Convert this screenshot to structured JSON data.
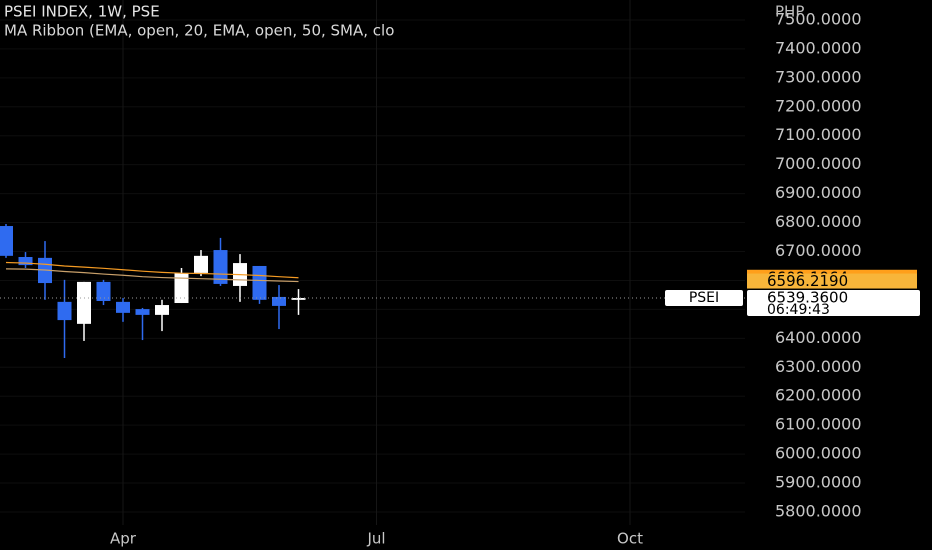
{
  "chart_data": {
    "type": "candlestick",
    "title": "PSEI INDEX, 1W, PSE",
    "subtitle": "MA Ribbon (EMA, open, 20, EMA, open, 50, SMA, clo",
    "y_unit": "PHP",
    "categories": [
      null,
      null,
      null,
      null,
      null,
      null,
      "Apr",
      null,
      null,
      null,
      null,
      null,
      null,
      null,
      null,
      null,
      null,
      null,
      null,
      "Jul",
      null,
      null,
      null,
      null,
      null,
      null,
      null,
      null,
      null,
      null,
      null,
      null,
      "Oct",
      null,
      null,
      null,
      null,
      null
    ],
    "open": [
      6788,
      6681,
      6678,
      6526,
      6450,
      6595,
      6526,
      6501,
      6481,
      6522,
      6626,
      6705,
      6581,
      6650,
      6543,
      6533,
      null,
      null,
      null,
      null,
      null,
      null,
      null,
      null,
      null,
      null,
      null,
      null,
      null,
      null,
      null,
      null,
      null,
      null,
      null,
      null,
      null,
      null
    ],
    "high": [
      6795,
      6698,
      6736,
      6602,
      6595,
      6602,
      6539,
      6505,
      6533,
      6643,
      6705,
      6747,
      6691,
      6650,
      6584,
      6570,
      null,
      null,
      null,
      null,
      null,
      null,
      null,
      null,
      null,
      null,
      null,
      null,
      null,
      null,
      null,
      null,
      null,
      null,
      null,
      null,
      null,
      null
    ],
    "low": [
      6678,
      6643,
      6533,
      6332,
      6391,
      6515,
      6457,
      6394,
      6425,
      6522,
      6615,
      6581,
      6526,
      6519,
      6432,
      6481,
      null,
      null,
      null,
      null,
      null,
      null,
      null,
      null,
      null,
      null,
      null,
      null,
      null,
      null,
      null,
      null,
      null,
      null,
      null,
      null,
      null,
      null
    ],
    "close": [
      6685,
      6653,
      6591,
      6463,
      6595,
      6529,
      6488,
      6481,
      6515,
      6626,
      6685,
      6588,
      6660,
      6533,
      6512,
      6539.36,
      null,
      null,
      null,
      null,
      null,
      null,
      null,
      null,
      null,
      null,
      null,
      null,
      null,
      null,
      null,
      null,
      null,
      null,
      null,
      null,
      null,
      null
    ],
    "up_color": "#ffffff",
    "down_color": "#2f6bf0",
    "ma_lines": [
      {
        "color": "#f59b23",
        "label_color": "#ff9f1a",
        "values": [
          6662,
          6660,
          6656,
          6650,
          6646,
          6642,
          6637,
          6632,
          6628,
          6625,
          6624,
          6622,
          6620,
          6617,
          6613,
          6609.1964,
          null,
          null,
          null,
          null,
          null,
          null,
          null,
          null,
          null,
          null,
          null,
          null,
          null,
          null,
          null,
          null,
          null,
          null,
          null,
          null,
          null,
          null
        ]
      },
      {
        "color": "#c9a06a",
        "label_color": "#f7b53a",
        "values": [
          6640,
          6639,
          6636,
          6631,
          6627,
          6622,
          6618,
          6613,
          6610,
          6608,
          6606,
          6604,
          6602,
          6600,
          6598,
          6596.219,
          null,
          null,
          null,
          null,
          null,
          null,
          null,
          null,
          null,
          null,
          null,
          null,
          null,
          null,
          null,
          null,
          null,
          null,
          null,
          null,
          null,
          null
        ],
        "value_labels": [
          null,
          null,
          null,
          null,
          null,
          null,
          null,
          null,
          null,
          null,
          null,
          null,
          null,
          null,
          null,
          "6596.2190",
          null,
          null,
          null,
          null,
          null,
          null,
          null,
          null,
          null,
          null,
          null,
          null,
          null,
          null,
          null,
          null,
          null,
          null,
          null,
          null,
          null,
          null
        ]
      }
    ],
    "last_price": {
      "symbol": "PSEI",
      "value": 6539.36,
      "value_label": "6539.3600",
      "countdown": "06:49:43"
    },
    "ylim": [
      5755,
      7569
    ],
    "yticks": [
      {
        "value": 5800,
        "label": "5800.0000"
      },
      {
        "value": 5900,
        "label": "5900.0000"
      },
      {
        "value": 6000,
        "label": "6000.0000"
      },
      {
        "value": 6100,
        "label": "6100.0000"
      },
      {
        "value": 6200,
        "label": "6200.0000"
      },
      {
        "value": 6300,
        "label": "6300.0000"
      },
      {
        "value": 6400,
        "label": "6400.0000"
      },
      {
        "value": 6500,
        "label": "6500.0000"
      },
      {
        "value": 6600,
        "label": "6600.0000"
      },
      {
        "value": 6700,
        "label": "6700.0000"
      },
      {
        "value": 6800,
        "label": "6800.0000"
      },
      {
        "value": 6900,
        "label": "6900.0000"
      },
      {
        "value": 7000,
        "label": "7000.0000"
      },
      {
        "value": 7100,
        "label": "7100.0000"
      },
      {
        "value": 7200,
        "label": "7200.0000"
      },
      {
        "value": 7300,
        "label": "7300.0000"
      },
      {
        "value": 7400,
        "label": "7400.0000"
      },
      {
        "value": 7500,
        "label": "7500.0000"
      }
    ],
    "grid": true
  }
}
